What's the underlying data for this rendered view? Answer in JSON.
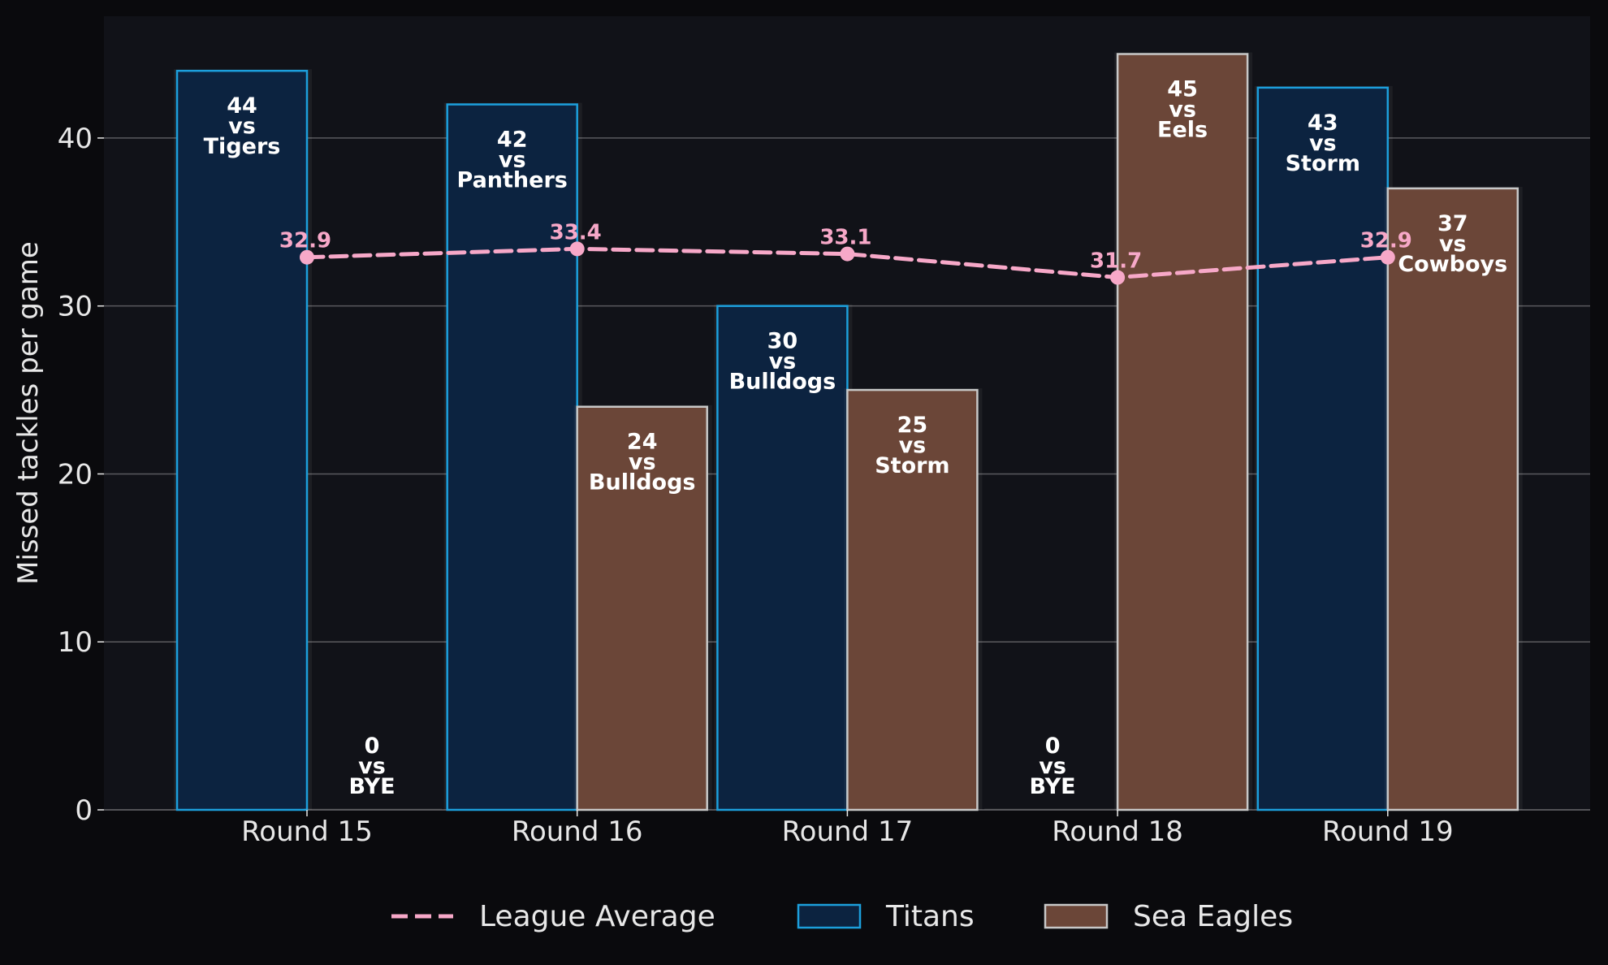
{
  "chart_data": {
    "type": "bar",
    "title": "",
    "xlabel": "",
    "ylabel": "Missed tackles per game",
    "ylim": [
      0,
      47.25
    ],
    "yticks": [
      0,
      10,
      20,
      30,
      40
    ],
    "grid": true,
    "legend_position": "bottom-center",
    "categories": [
      "Round 15",
      "Round 16",
      "Round 17",
      "Round 18",
      "Round 19"
    ],
    "series": [
      {
        "name": "Titans",
        "kind": "bar",
        "values": [
          44,
          42,
          30,
          0,
          43
        ],
        "opponents": [
          "Tigers",
          "Panthers",
          "Bulldogs",
          "BYE",
          "Storm"
        ],
        "fill": "#0c2340",
        "stroke": "#1c9fdc"
      },
      {
        "name": "Sea Eagles",
        "kind": "bar",
        "values": [
          0,
          24,
          25,
          45,
          37
        ],
        "opponents": [
          "BYE",
          "Bulldogs",
          "Storm",
          "Eels",
          "Cowboys"
        ],
        "fill": "#6b4638",
        "stroke": "#c8c8c8"
      },
      {
        "name": "League Average",
        "kind": "line",
        "values": [
          32.9,
          33.4,
          33.1,
          31.7,
          32.9
        ],
        "labels": [
          "32.9",
          "33.4",
          "33.1",
          "31.7",
          "32.9"
        ],
        "color": "#f7a8c8"
      }
    ],
    "vs_word": "vs"
  },
  "colors": {
    "page_background": "#0a0a0d",
    "plot_background": "#111218",
    "grid": "#5a5a5e",
    "text": "#e8e8e8",
    "bar_label": "#ffffff"
  }
}
